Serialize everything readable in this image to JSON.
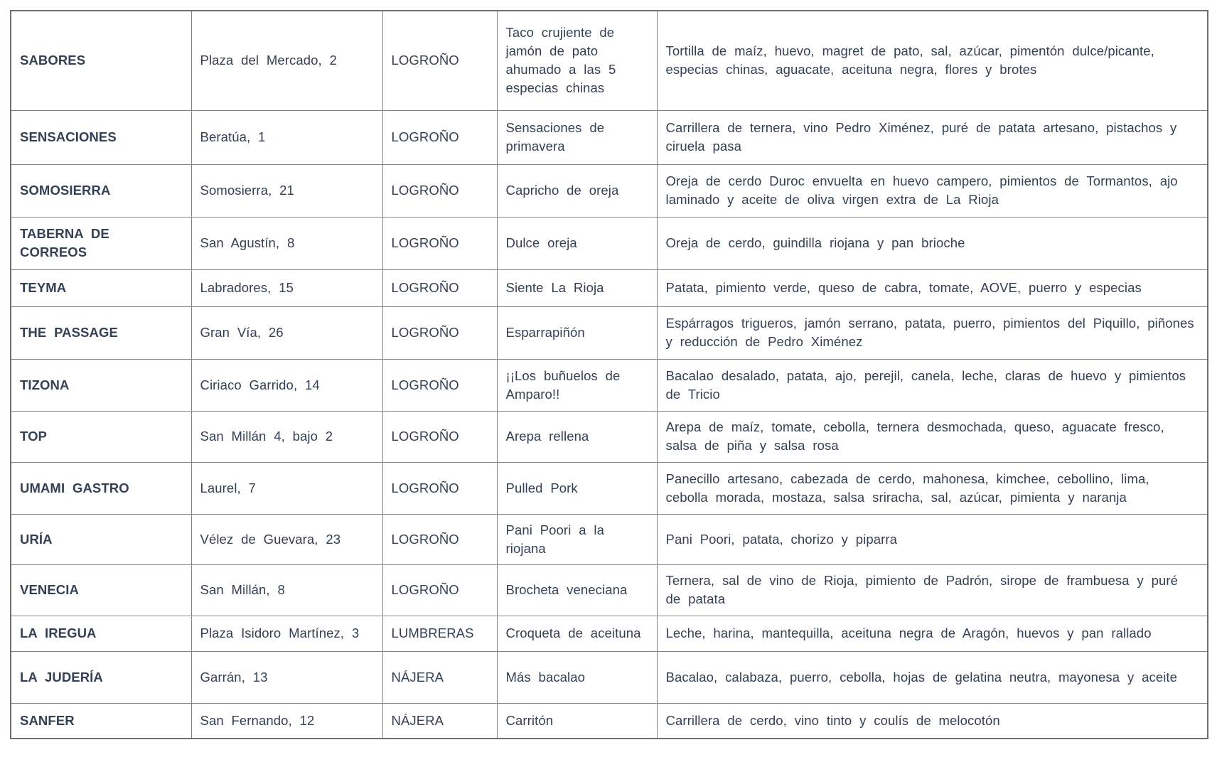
{
  "colors": {
    "background": "#ffffff",
    "text": "#344054",
    "name_text": "#2e3a4d",
    "border": "#858585"
  },
  "table": {
    "fields": [
      "name",
      "address",
      "city",
      "tapa",
      "ingredients"
    ],
    "rows": [
      {
        "name": "SABORES",
        "address": "Plaza del Mercado, 2",
        "city": "LOGROÑO",
        "tapa": "Taco crujiente de jamón de pato ahumado a las 5 especias chinas",
        "ingredients": "Tortilla de maíz, huevo, magret de pato, sal, azúcar, pimentón dulce/picante, especias chinas, aguacate, aceituna negra, flores y brotes"
      },
      {
        "name": "SENSACIONES",
        "address": "Beratúa, 1",
        "city": "LOGROÑO",
        "tapa": "Sensaciones de primavera",
        "ingredients": "Carrillera de ternera, vino Pedro Ximénez, puré de patata artesano, pistachos y ciruela pasa"
      },
      {
        "name": "SOMOSIERRA",
        "address": "Somosierra, 21",
        "city": "LOGROÑO",
        "tapa": "Capricho de oreja",
        "ingredients": "Oreja de cerdo Duroc envuelta en huevo campero, pimientos de Tormantos, ajo laminado y aceite de oliva virgen extra de La Rioja"
      },
      {
        "name": "TABERNA DE CORREOS",
        "address": "San Agustín, 8",
        "city": "LOGROÑO",
        "tapa": "Dulce oreja",
        "ingredients": "Oreja de cerdo, guindilla riojana y pan brioche"
      },
      {
        "name": "TEYMA",
        "address": "Labradores, 15",
        "city": "LOGROÑO",
        "tapa": "Siente La Rioja",
        "ingredients": "Patata, pimiento verde, queso de cabra, tomate, AOVE, puerro y especias"
      },
      {
        "name": "THE PASSAGE",
        "address": "Gran Vía, 26",
        "city": "LOGROÑO",
        "tapa": "Esparrapiñón",
        "ingredients": "Espárragos trigueros, jamón serrano, patata, puerro, pimientos del Piquillo, piñones y reducción de Pedro Ximénez"
      },
      {
        "name": "TIZONA",
        "address": "Ciriaco Garrido, 14",
        "city": "LOGROÑO",
        "tapa": "¡¡Los buñuelos de Amparo!!",
        "ingredients": "Bacalao desalado, patata, ajo, perejil, canela, leche, claras de huevo y pimientos de Tricio"
      },
      {
        "name": "TOP",
        "address": "San Millán 4, bajo 2",
        "city": "LOGROÑO",
        "tapa": "Arepa rellena",
        "ingredients": "Arepa de maíz, tomate, cebolla, ternera desmochada, queso, aguacate fresco, salsa de piña y salsa rosa"
      },
      {
        "name": "UMAMI GASTRO",
        "address": "Laurel, 7",
        "city": "LOGROÑO",
        "tapa": "Pulled Pork",
        "ingredients": "Panecillo artesano, cabezada de cerdo, mahonesa, kimchee, cebollino, lima, cebolla morada, mostaza, salsa sriracha, sal, azúcar, pimienta y naranja"
      },
      {
        "name": "URÍA",
        "address": "Vélez de Guevara, 23",
        "city": "LOGROÑO",
        "tapa": "Pani Poori a la riojana",
        "ingredients": "Pani Poori, patata, chorizo y piparra"
      },
      {
        "name": "VENECIA",
        "address": "San Millán, 8",
        "city": "LOGROÑO",
        "tapa": "Brocheta veneciana",
        "ingredients": "Ternera, sal de vino de Rioja, pimiento de Padrón, sirope de frambuesa y puré de patata"
      },
      {
        "name": "LA IREGUA",
        "address": "Plaza Isidoro Martínez, 3",
        "city": "LUMBRERAS",
        "tapa": "Croqueta de aceituna",
        "ingredients": "Leche, harina, mantequilla, aceituna negra de Aragón, huevos y pan rallado"
      },
      {
        "name": "LA JUDERÍA",
        "address": "Garrán, 13",
        "city": "NÁJERA",
        "tapa": "Más bacalao",
        "ingredients": "Bacalao, calabaza, puerro, cebolla, hojas de gelatina neutra, mayonesa y aceite"
      },
      {
        "name": "SANFER",
        "address": "San Fernando, 12",
        "city": "NÁJERA",
        "tapa": "Carritón",
        "ingredients": "Carrillera de cerdo, vino tinto y coulís de melocotón"
      }
    ]
  }
}
